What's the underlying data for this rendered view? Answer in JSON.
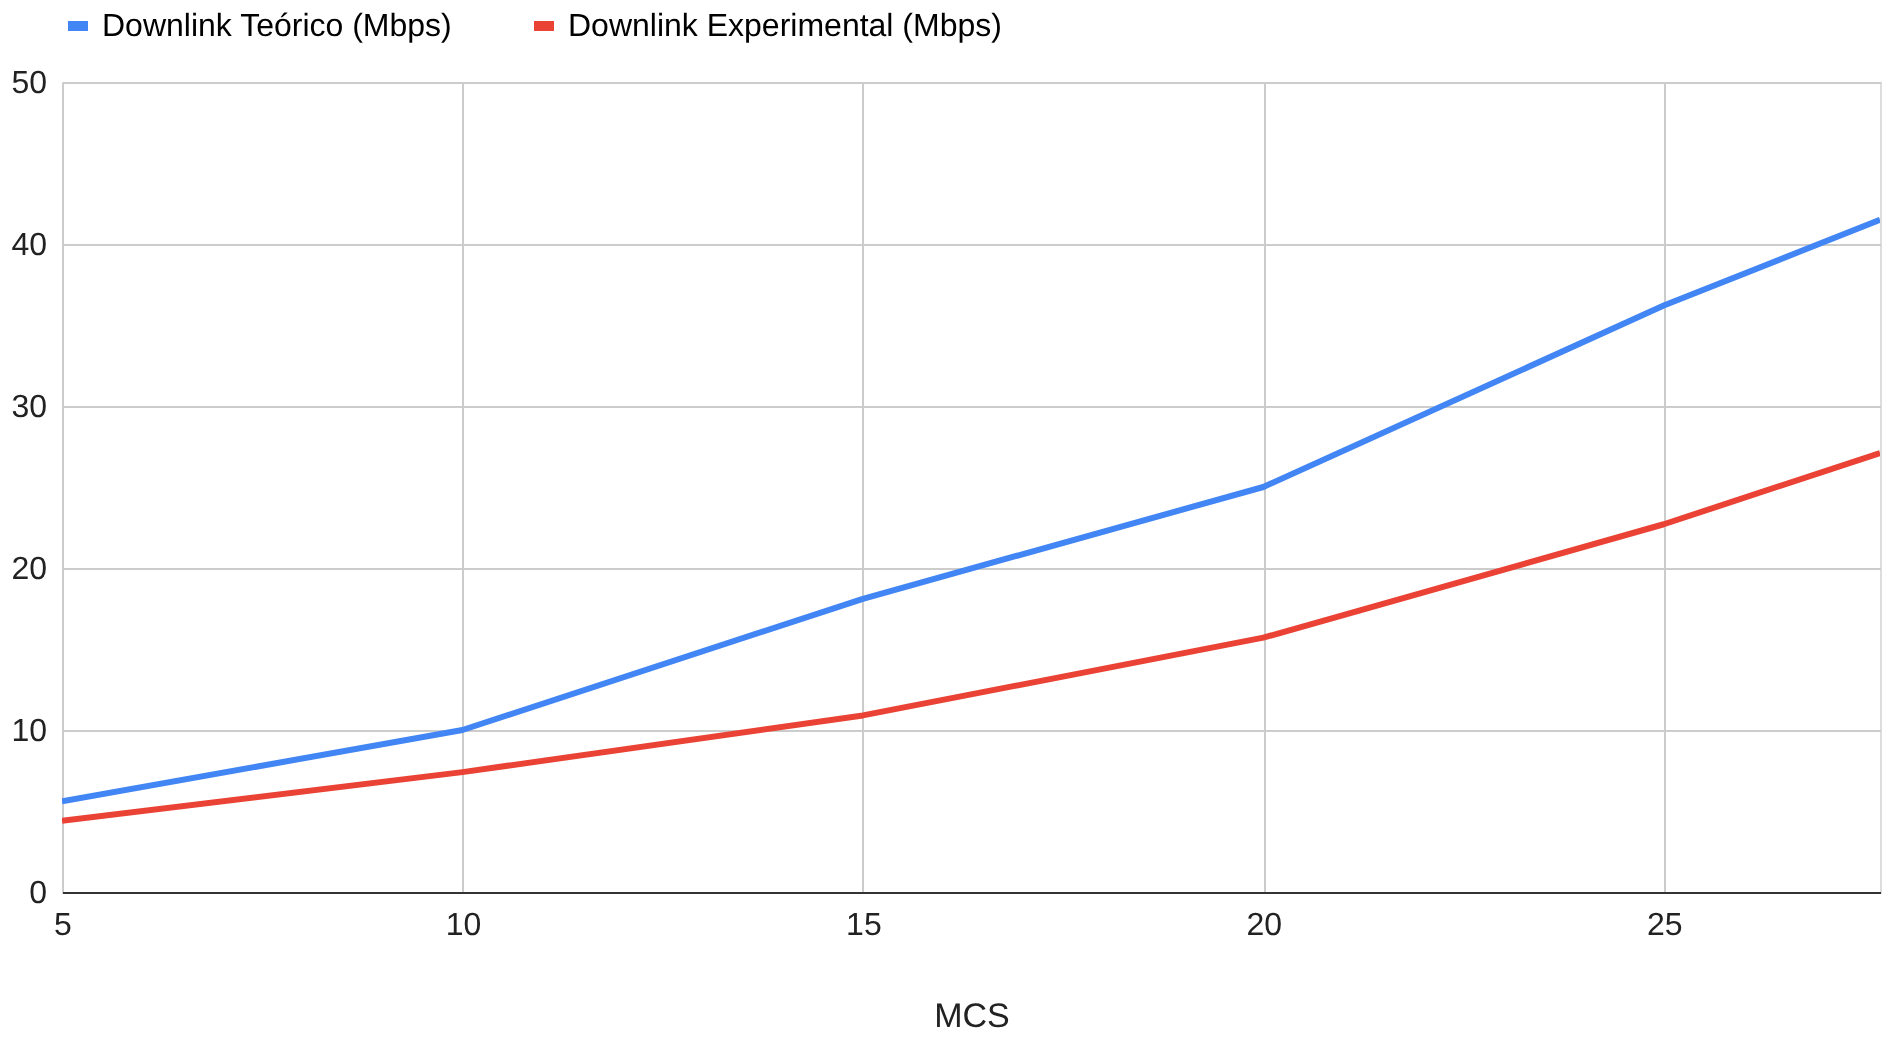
{
  "chart_data": {
    "type": "line",
    "xlabel": "MCS",
    "x": [
      5,
      10,
      15,
      20,
      25,
      27.7
    ],
    "series": [
      {
        "name": "Downlink Teórico (Mbps)",
        "color": "#4285f4",
        "values": [
          5.6,
          10.0,
          18.1,
          25.0,
          36.2,
          41.5
        ]
      },
      {
        "name": "Downlink Experimental (Mbps)",
        "color": "#ea4335",
        "values": [
          4.4,
          7.4,
          10.9,
          15.7,
          22.7,
          27.1
        ]
      }
    ],
    "xlim": [
      5,
      27.7
    ],
    "xticks": [
      5,
      10,
      15,
      20,
      25
    ],
    "ylim": [
      0,
      50
    ],
    "yticks": [
      0,
      10,
      20,
      30,
      40,
      50
    ],
    "grid": true,
    "legend": "top",
    "marker": "none",
    "line_style": "solid"
  }
}
